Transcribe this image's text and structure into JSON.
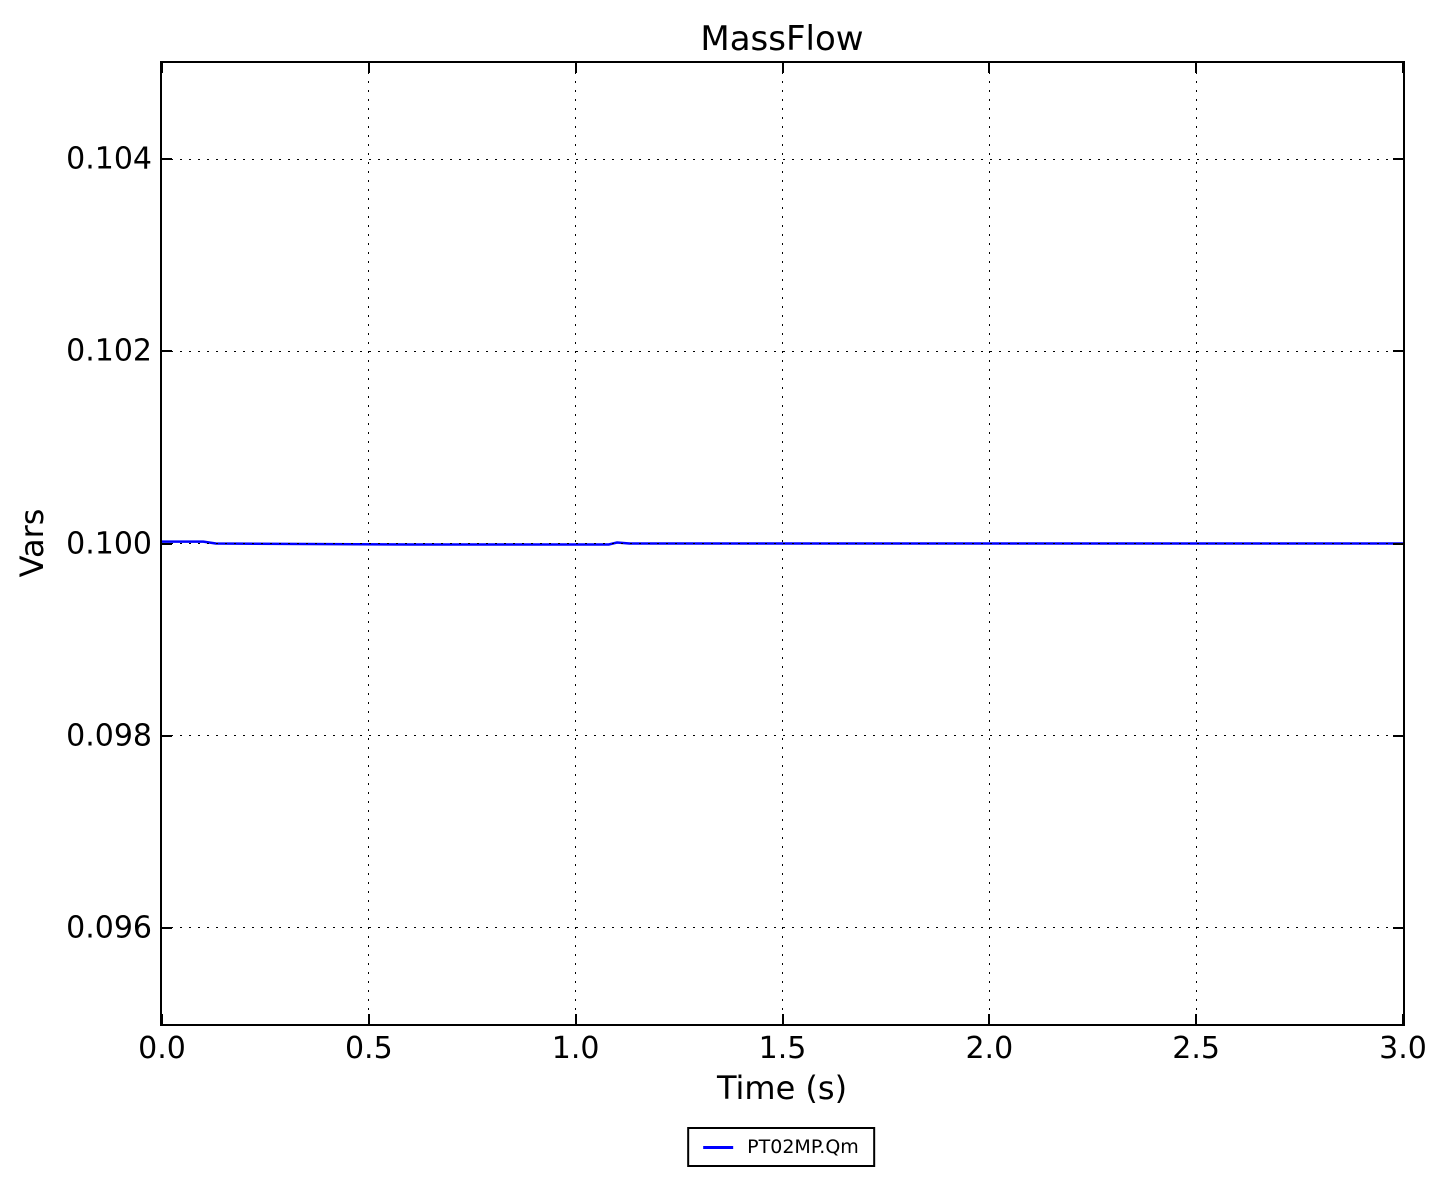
{
  "chart_data": {
    "type": "line",
    "title": "MassFlow",
    "xlabel": "Time (s)",
    "ylabel": "Vars",
    "xlim": [
      0.0,
      3.0
    ],
    "ylim": [
      0.095,
      0.105
    ],
    "xticks": [
      0.0,
      0.5,
      1.0,
      1.5,
      2.0,
      2.5,
      3.0
    ],
    "xtick_labels": [
      "0.0",
      "0.5",
      "1.0",
      "1.5",
      "2.0",
      "2.5",
      "3.0"
    ],
    "yticks": [
      0.096,
      0.098,
      0.1,
      0.102,
      0.104
    ],
    "ytick_labels": [
      "0.096",
      "0.098",
      "0.100",
      "0.102",
      "0.104"
    ],
    "grid": "dotted",
    "grid_color": "#000000",
    "background_color": "#ffffff",
    "legend_position": "below-figure-center",
    "series": [
      {
        "name": "PT02MP.Qm",
        "color": "#0000ff",
        "x": [
          0.0,
          0.1,
          0.13,
          0.6,
          1.08,
          1.1,
          1.13,
          1.5,
          2.0,
          2.5,
          3.0
        ],
        "y": [
          0.10002,
          0.10002,
          0.1,
          0.09999,
          0.09999,
          0.10001,
          0.1,
          0.1,
          0.1,
          0.1,
          0.1
        ]
      }
    ]
  }
}
